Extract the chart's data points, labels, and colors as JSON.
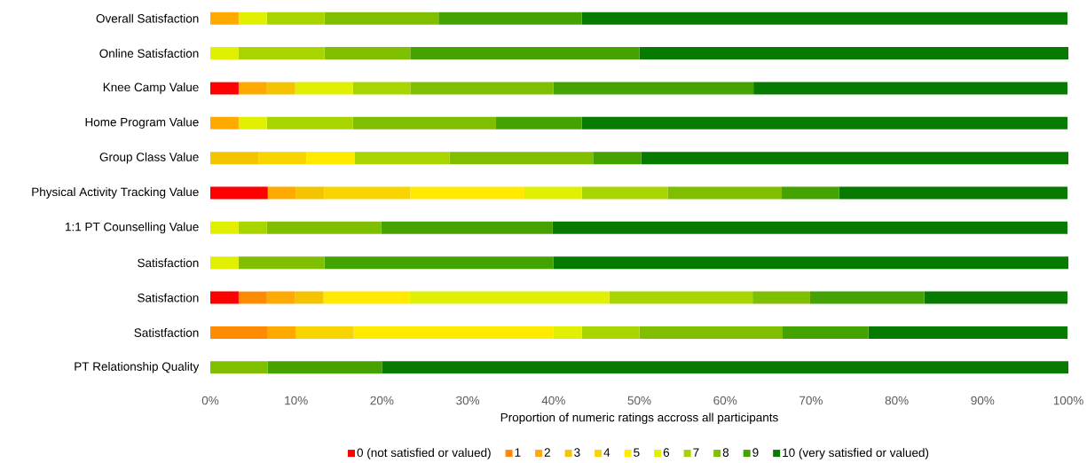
{
  "chart_data": {
    "type": "bar",
    "orientation": "horizontal",
    "stacked": true,
    "categories": [
      "Overall Satisfaction",
      "Online Satisfaction",
      "Knee Camp Value",
      "Home Program Value",
      "Group Class Value",
      "Physical Activity Tracking Value",
      "1:1 PT Counselling Value",
      "Satisfaction",
      "Satisfaction",
      "Satistfaction",
      "PT Relationship Quality"
    ],
    "xlabel": "Proportion of numeric ratings accross all participants",
    "xlim": [
      0,
      100
    ],
    "xticks": [
      {
        "value": 0,
        "label": "0%"
      },
      {
        "value": 10,
        "label": "10%"
      },
      {
        "value": 20,
        "label": "20%"
      },
      {
        "value": 30,
        "label": "30%"
      },
      {
        "value": 40,
        "label": "40%"
      },
      {
        "value": 50,
        "label": "50%"
      },
      {
        "value": 60,
        "label": "60%"
      },
      {
        "value": 70,
        "label": "70%"
      },
      {
        "value": 80,
        "label": "80%"
      },
      {
        "value": 90,
        "label": "90%"
      },
      {
        "value": 100,
        "label": "100%"
      }
    ],
    "legend": "bottom",
    "series": [
      {
        "name": "0 (not satisfied or valued)",
        "color": "#ff0000",
        "values": [
          0,
          0,
          3.3,
          0,
          0,
          6.7,
          0,
          0,
          3.3,
          0,
          0
        ]
      },
      {
        "name": "1",
        "color": "#ff8c00",
        "values": [
          0,
          0,
          0,
          0,
          0,
          0,
          0,
          0,
          3.3,
          6.7,
          0
        ]
      },
      {
        "name": "2",
        "color": "#ffaa00",
        "values": [
          3.3,
          0,
          3.3,
          3.3,
          0,
          3.3,
          0,
          0,
          3.3,
          3.3,
          0
        ]
      },
      {
        "name": "3",
        "color": "#f5c400",
        "values": [
          0,
          0,
          3.3,
          0,
          5.6,
          3.3,
          0,
          0,
          3.3,
          0,
          0
        ]
      },
      {
        "name": "4",
        "color": "#f8d500",
        "values": [
          0,
          0,
          0,
          0,
          5.6,
          10,
          0,
          0,
          0,
          6.7,
          0
        ]
      },
      {
        "name": "5",
        "color": "#ffea00",
        "values": [
          0,
          0,
          0,
          0,
          5.6,
          13.3,
          0,
          0,
          10,
          23.3,
          0
        ]
      },
      {
        "name": "6",
        "color": "#e0f000",
        "values": [
          3.3,
          3.3,
          6.7,
          3.3,
          0,
          6.7,
          3.3,
          3.3,
          23.3,
          3.3,
          0
        ]
      },
      {
        "name": "7",
        "color": "#a8d500",
        "values": [
          6.7,
          10,
          6.7,
          10,
          11.1,
          10,
          3.3,
          0,
          16.7,
          6.7,
          0
        ]
      },
      {
        "name": "8",
        "color": "#80be00",
        "values": [
          13.3,
          10,
          16.7,
          16.7,
          16.7,
          13.3,
          13.3,
          10,
          6.7,
          16.7,
          6.7
        ]
      },
      {
        "name": "9",
        "color": "#44a300",
        "values": [
          16.7,
          26.7,
          23.3,
          10,
          5.6,
          6.7,
          20,
          26.7,
          13.3,
          10,
          13.3
        ]
      },
      {
        "name": "10 (very satisfied or valued)",
        "color": "#077a00",
        "values": [
          56.6,
          50,
          36.6,
          56.6,
          49.8,
          26.6,
          60,
          60,
          16.7,
          23.2,
          80
        ]
      }
    ]
  }
}
